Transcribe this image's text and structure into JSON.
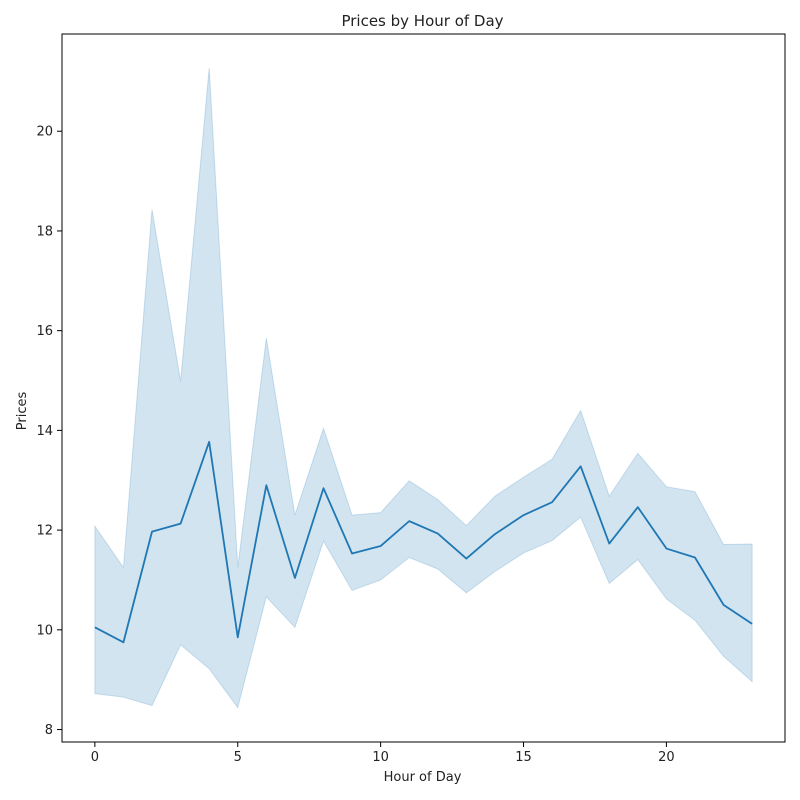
{
  "chart_data": {
    "type": "line",
    "title": "Prices by Hour of Day",
    "xlabel": "Hour of Day",
    "ylabel": "Prices",
    "xlim": [
      -1.15,
      24.15
    ],
    "ylim": [
      7.75,
      21.95
    ],
    "x_ticks": [
      0,
      5,
      10,
      15,
      20
    ],
    "y_ticks": [
      8,
      10,
      12,
      14,
      16,
      18,
      20
    ],
    "grid": false,
    "legend": "none",
    "colors": {
      "line": "#1f77b4",
      "band": "#1f77b4"
    },
    "series": [
      {
        "x": [
          0,
          1,
          2,
          3,
          4,
          5,
          6,
          7,
          8,
          9,
          10,
          11,
          12,
          13,
          14,
          15,
          16,
          17,
          18,
          19,
          20,
          21,
          22,
          23
        ],
        "values": [
          10.05,
          9.75,
          11.97,
          12.13,
          13.77,
          9.85,
          12.9,
          11.04,
          12.84,
          11.53,
          11.68,
          12.18,
          11.93,
          11.43,
          11.92,
          12.3,
          12.56,
          13.28,
          11.73,
          12.46,
          11.63,
          11.45,
          10.5,
          10.12
        ],
        "ci_lower": [
          8.72,
          8.65,
          8.48,
          9.7,
          9.22,
          8.44,
          10.66,
          10.05,
          11.78,
          10.79,
          11.0,
          11.45,
          11.22,
          10.74,
          11.17,
          11.54,
          11.79,
          12.26,
          10.93,
          11.41,
          10.62,
          10.19,
          9.47,
          8.96
        ],
        "ci_upper": [
          12.08,
          11.25,
          18.43,
          14.98,
          21.27,
          11.25,
          15.85,
          12.3,
          14.04,
          12.3,
          12.35,
          12.99,
          12.61,
          12.09,
          12.68,
          13.06,
          13.42,
          14.4,
          12.68,
          13.54,
          12.87,
          12.77,
          11.71,
          11.72
        ]
      }
    ]
  }
}
